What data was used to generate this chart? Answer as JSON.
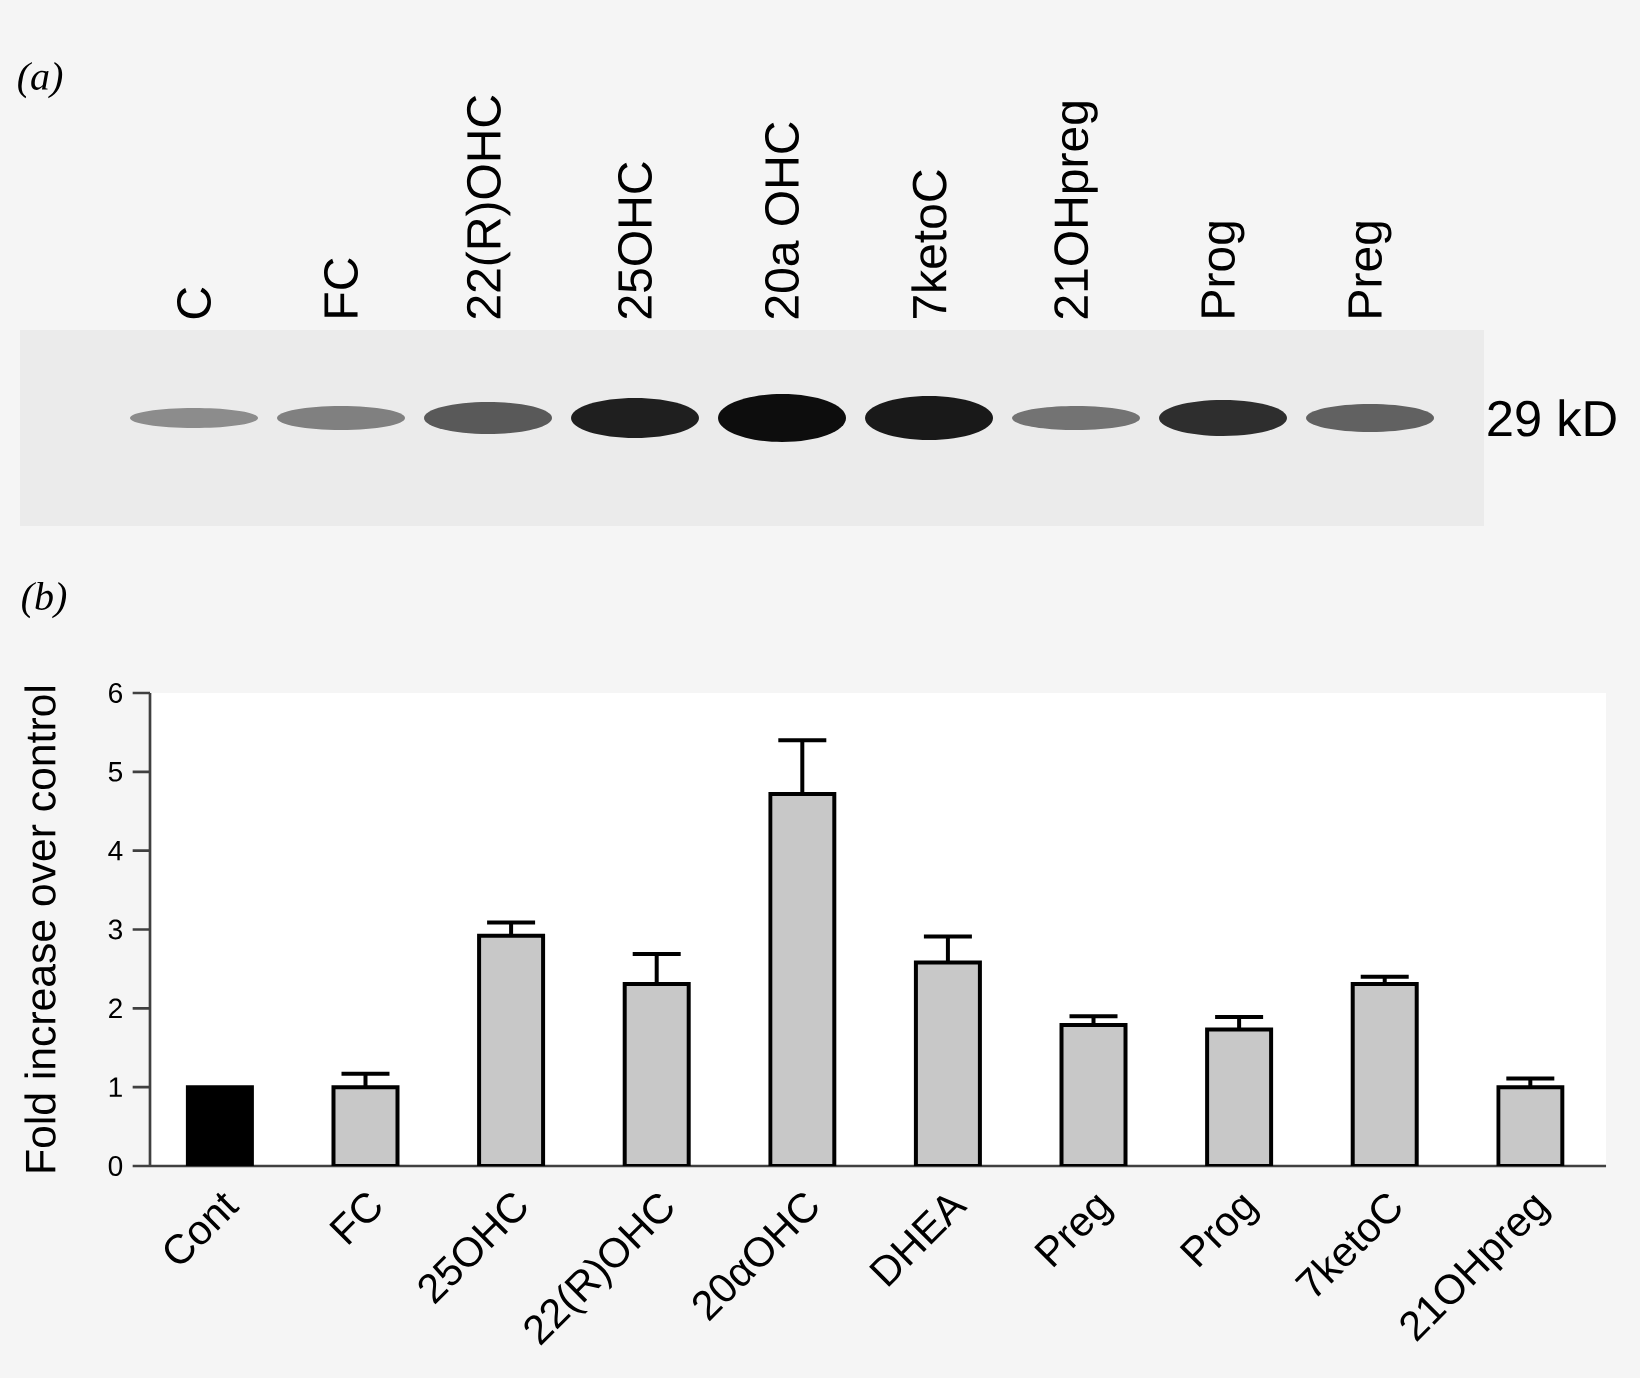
{
  "chart_data": [
    {
      "type": "other",
      "title": "(a)",
      "categories": [
        "C",
        "FC",
        "22(R)OHC",
        "25OHC",
        "20a OHC",
        "7ketoC",
        "21OHpreg",
        "Prog",
        "Preg"
      ],
      "annotations": [
        "29 kD"
      ]
    },
    {
      "type": "bar",
      "title": "(b)",
      "ylabel": "Fold increase over control",
      "categories": [
        "Cont",
        "FC",
        "25OHC",
        "22(R)OHC",
        "20αOHC",
        "DHEA",
        "Preg",
        "Prog",
        "7ketoC",
        "21OHpreg"
      ],
      "values": [
        1.0,
        1.0,
        2.92,
        2.31,
        4.72,
        2.58,
        1.79,
        1.73,
        2.31,
        1.0
      ],
      "colors": [
        "#000000",
        "#c8c8c8",
        "#c8c8c8",
        "#c8c8c8",
        "#c8c8c8",
        "#c8c8c8",
        "#c8c8c8",
        "#c8c8c8",
        "#c8c8c8",
        "#c8c8c8"
      ],
      "errors": [
        null,
        [
          1.0,
          1.17
        ],
        [
          2.92,
          3.09
        ],
        [
          2.31,
          2.69
        ],
        [
          4.72,
          5.4
        ],
        [
          2.58,
          2.91
        ],
        [
          1.79,
          1.9
        ],
        [
          1.73,
          1.89
        ],
        [
          2.31,
          2.4
        ],
        [
          1.0,
          1.11
        ]
      ],
      "ylim": [
        0,
        6
      ],
      "yticks": [
        0,
        1,
        2,
        3,
        4,
        5,
        6
      ]
    }
  ]
}
